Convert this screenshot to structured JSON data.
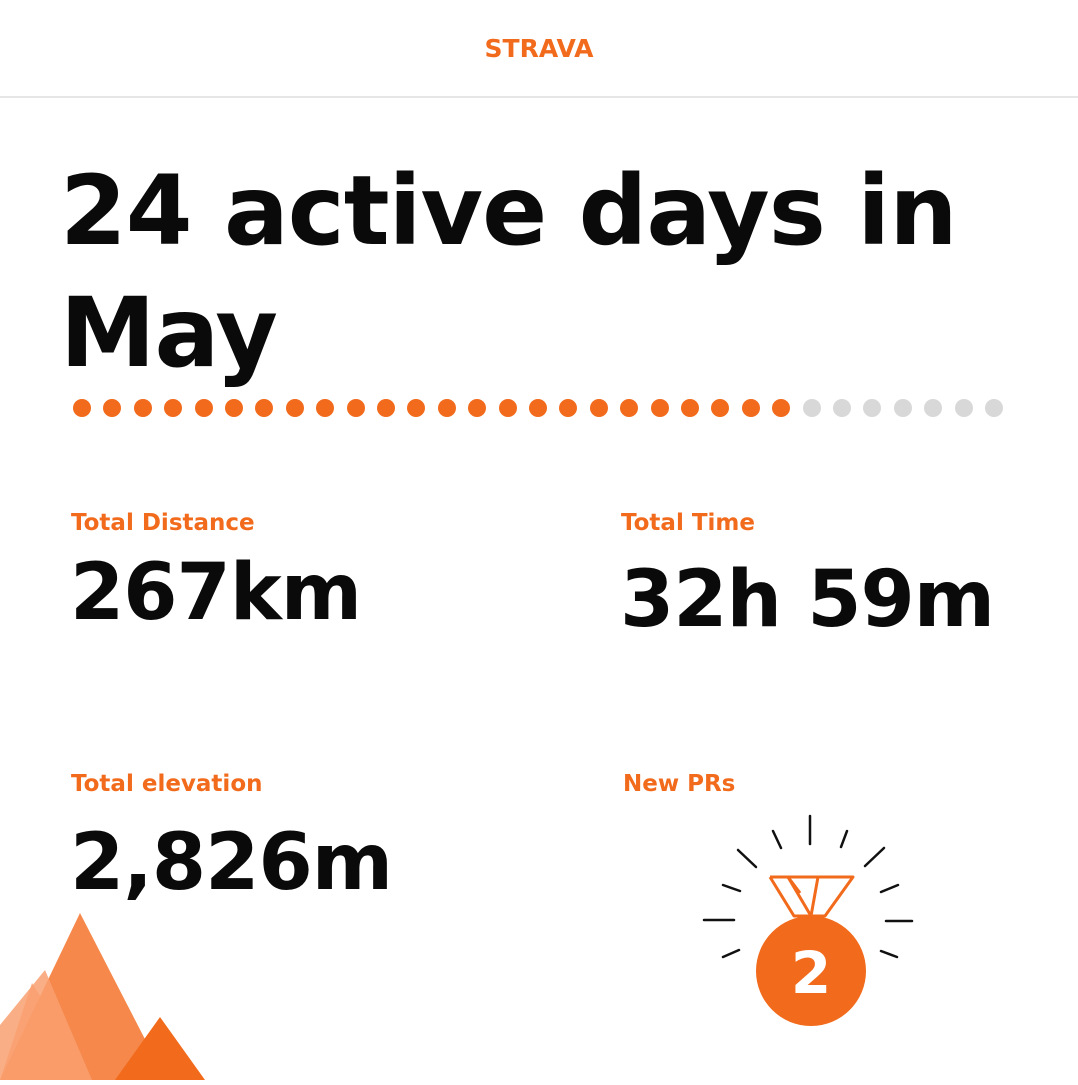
{
  "brand": {
    "name": "STRAVA",
    "color": "#f26a1b"
  },
  "headline": "24 active days in May",
  "active_days": {
    "active": 24,
    "total": 31,
    "active_color": "#f26a1b",
    "inactive_color": "#d8d8d8"
  },
  "stats": {
    "distance": {
      "label": "Total Distance",
      "value": "267km"
    },
    "time": {
      "label": "Total Time",
      "value": "32h 59m"
    },
    "elevation": {
      "label": "Total elevation",
      "value": "2,826m"
    },
    "prs": {
      "label": "New PRs",
      "value": "2",
      "icon": "medal-icon"
    }
  },
  "decoration": {
    "icon": "mountains-icon"
  }
}
